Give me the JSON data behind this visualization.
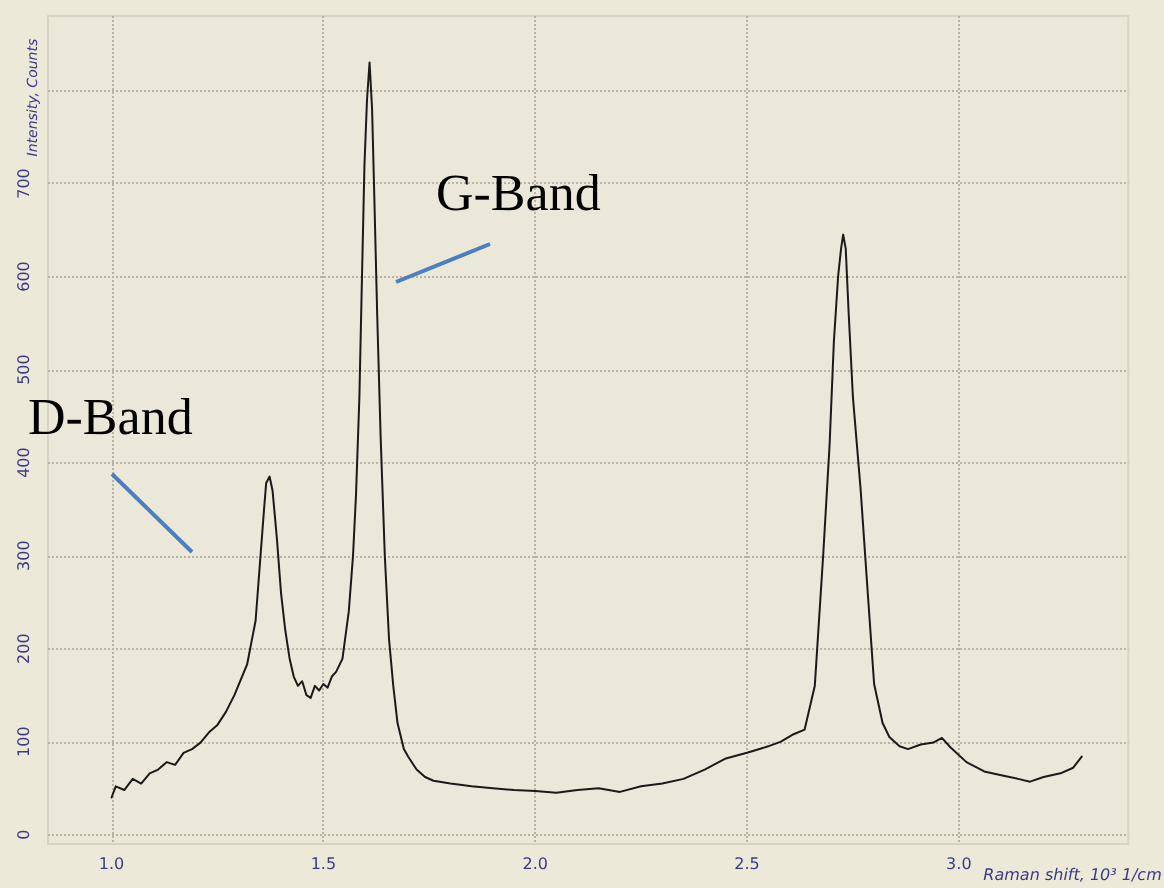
{
  "chart_data": {
    "type": "line",
    "xlabel": "Raman shift, 10³ 1/cm",
    "ylabel": "Intensity, Counts",
    "xlim": [
      0.85,
      3.4
    ],
    "xticks": [
      {
        "value": 1,
        "label": "1.0"
      },
      {
        "value": 1.5,
        "label": "1.5"
      },
      {
        "value": 2,
        "label": "2.0"
      },
      {
        "value": 2.5,
        "label": "2.5"
      },
      {
        "value": 3,
        "label": "3.0"
      }
    ],
    "ylim": [
      -10,
      880
    ],
    "yticks": [
      0,
      100,
      200,
      300,
      400,
      500,
      600,
      700,
      {
        "value": 800,
        "label": null
      }
    ],
    "grid": true,
    "marker": "none",
    "line_style": "solid",
    "annotations": [
      "D-Band",
      "G-Band"
    ],
    "series": [
      {
        "color": "#1a1a1a",
        "x": [
          1.0,
          1.01,
          1.03,
          1.05,
          1.07,
          1.09,
          1.11,
          1.13,
          1.15,
          1.17,
          1.19,
          1.21,
          1.23,
          1.25,
          1.27,
          1.29,
          1.31,
          1.32,
          1.34,
          1.35,
          1.36,
          1.365,
          1.373,
          1.38,
          1.39,
          1.4,
          1.41,
          1.42,
          1.43,
          1.44,
          1.45,
          1.46,
          1.47,
          1.48,
          1.49,
          1.5,
          1.51,
          1.52,
          1.53,
          1.545,
          1.56,
          1.57,
          1.577,
          1.585,
          1.59,
          1.597,
          1.603,
          1.609,
          1.615,
          1.62,
          1.627,
          1.635,
          1.645,
          1.655,
          1.665,
          1.675,
          1.69,
          1.7,
          1.72,
          1.74,
          1.76,
          1.8,
          1.85,
          1.9,
          1.95,
          2.0,
          2.05,
          2.1,
          2.15,
          2.2,
          2.25,
          2.3,
          2.35,
          2.4,
          2.45,
          2.5,
          2.55,
          2.58,
          2.61,
          2.636,
          2.66,
          2.68,
          2.695,
          2.705,
          2.715,
          2.722,
          2.727,
          2.733,
          2.74,
          2.75,
          2.768,
          2.785,
          2.8,
          2.82,
          2.836,
          2.86,
          2.88,
          2.91,
          2.94,
          2.96,
          2.98,
          3.018,
          3.06,
          3.1,
          3.14,
          3.168,
          3.2,
          3.24,
          3.27,
          3.29
        ],
        "values": [
          40,
          52,
          48,
          60,
          55,
          66,
          70,
          78,
          75,
          88,
          92,
          99,
          110,
          118,
          132,
          150,
          172,
          183,
          230,
          290,
          350,
          378,
          385,
          370,
          320,
          260,
          220,
          190,
          170,
          160,
          165,
          150,
          147,
          160,
          155,
          162,
          158,
          170,
          175,
          189,
          240,
          300,
          365,
          470,
          576,
          720,
          790,
          830,
          780,
          690,
          560,
          430,
          300,
          210,
          160,
          120,
          92,
          84,
          70,
          62,
          58,
          55,
          52,
          50,
          48,
          47,
          45,
          48,
          50,
          46,
          52,
          55,
          60,
          70,
          82,
          88,
          95,
          100,
          108,
          113,
          160,
          302,
          420,
          530,
          600,
          630,
          645,
          630,
          560,
          470,
          372,
          260,
          162,
          120,
          105,
          95,
          92,
          97,
          99,
          104,
          94,
          78,
          68,
          64,
          60,
          57,
          62,
          66,
          72,
          84
        ]
      }
    ]
  }
}
